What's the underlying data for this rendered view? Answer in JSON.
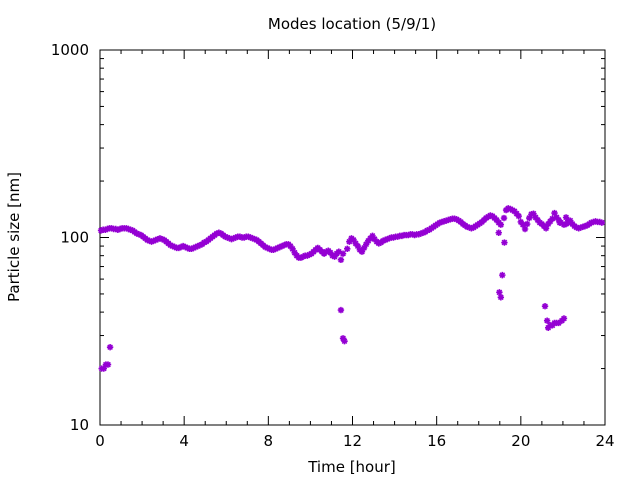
{
  "chart_data": {
    "type": "scatter",
    "title": "Modes location (5/9/1)",
    "xlabel": "Time [hour]",
    "ylabel": "Particle size [nm]",
    "xlim": [
      0,
      24
    ],
    "ylim": [
      10,
      1000
    ],
    "yscale": "log",
    "grid": false,
    "legend": "none",
    "marker_color": "#9400d3",
    "marker": "asterisk",
    "xticks": [
      0,
      4,
      8,
      12,
      16,
      20,
      24
    ],
    "xtick_labels": [
      "0",
      "4",
      "8",
      "12",
      "16",
      "20",
      "24"
    ],
    "yticks": [
      10,
      100,
      1000
    ],
    "ytick_labels": [
      "10",
      "100",
      "1000"
    ],
    "series": [
      {
        "points": [
          [
            0.05,
            109
          ],
          [
            0.15,
            110
          ],
          [
            0.25,
            110
          ],
          [
            0.35,
            111
          ],
          [
            0.45,
            112
          ],
          [
            0.55,
            112
          ],
          [
            0.65,
            111
          ],
          [
            0.75,
            111
          ],
          [
            0.85,
            110
          ],
          [
            0.95,
            111
          ],
          [
            1.05,
            112
          ],
          [
            1.15,
            112
          ],
          [
            1.25,
            112
          ],
          [
            1.35,
            111
          ],
          [
            1.45,
            110
          ],
          [
            1.55,
            109
          ],
          [
            1.65,
            107
          ],
          [
            1.75,
            105
          ],
          [
            1.85,
            104
          ],
          [
            1.95,
            103
          ],
          [
            2.05,
            101
          ],
          [
            2.15,
            99
          ],
          [
            2.25,
            97
          ],
          [
            2.35,
            96
          ],
          [
            2.45,
            95
          ],
          [
            2.55,
            96
          ],
          [
            2.65,
            97
          ],
          [
            2.75,
            98
          ],
          [
            2.85,
            99
          ],
          [
            2.95,
            98
          ],
          [
            3.05,
            97
          ],
          [
            3.15,
            95
          ],
          [
            3.25,
            93
          ],
          [
            3.35,
            91
          ],
          [
            3.45,
            90
          ],
          [
            3.55,
            89
          ],
          [
            3.65,
            88
          ],
          [
            3.75,
            88
          ],
          [
            3.85,
            89
          ],
          [
            3.95,
            90
          ],
          [
            4.05,
            89
          ],
          [
            4.15,
            88
          ],
          [
            4.25,
            87
          ],
          [
            4.35,
            87
          ],
          [
            4.45,
            88
          ],
          [
            4.55,
            89
          ],
          [
            4.65,
            90
          ],
          [
            4.75,
            91
          ],
          [
            4.85,
            92
          ],
          [
            4.95,
            94
          ],
          [
            5.05,
            95
          ],
          [
            5.15,
            97
          ],
          [
            5.25,
            99
          ],
          [
            5.35,
            101
          ],
          [
            5.45,
            103
          ],
          [
            5.55,
            105
          ],
          [
            5.65,
            106
          ],
          [
            5.75,
            105
          ],
          [
            5.85,
            103
          ],
          [
            5.95,
            101
          ],
          [
            6.05,
            100
          ],
          [
            6.15,
            99
          ],
          [
            6.25,
            98
          ],
          [
            6.35,
            99
          ],
          [
            6.45,
            100
          ],
          [
            6.55,
            101
          ],
          [
            6.65,
            101
          ],
          [
            6.75,
            100
          ],
          [
            6.85,
            100
          ],
          [
            6.95,
            101
          ],
          [
            7.05,
            101
          ],
          [
            7.15,
            100
          ],
          [
            7.25,
            99
          ],
          [
            7.35,
            98
          ],
          [
            7.45,
            97
          ],
          [
            7.55,
            95
          ],
          [
            7.65,
            93
          ],
          [
            7.75,
            91
          ],
          [
            7.85,
            89
          ],
          [
            7.95,
            88
          ],
          [
            8.05,
            87
          ],
          [
            8.15,
            86
          ],
          [
            8.25,
            86
          ],
          [
            8.35,
            87
          ],
          [
            8.45,
            88
          ],
          [
            8.55,
            89
          ],
          [
            8.65,
            90
          ],
          [
            8.75,
            91
          ],
          [
            8.85,
            92
          ],
          [
            8.95,
            92
          ],
          [
            9.05,
            90
          ],
          [
            9.15,
            87
          ],
          [
            9.25,
            83
          ],
          [
            9.35,
            80
          ],
          [
            9.45,
            78
          ],
          [
            9.55,
            78
          ],
          [
            9.65,
            79
          ],
          [
            9.75,
            80
          ],
          [
            9.85,
            80
          ],
          [
            9.95,
            81
          ],
          [
            10.05,
            82
          ],
          [
            10.15,
            84
          ],
          [
            10.25,
            86
          ],
          [
            10.35,
            88
          ],
          [
            10.45,
            86
          ],
          [
            10.55,
            84
          ],
          [
            10.65,
            82
          ],
          [
            10.75,
            84
          ],
          [
            10.85,
            85
          ],
          [
            10.95,
            83
          ],
          [
            11.05,
            80
          ],
          [
            11.15,
            79
          ],
          [
            11.25,
            82
          ],
          [
            11.35,
            84
          ],
          [
            11.45,
            76
          ],
          [
            11.55,
            82
          ],
          [
            11.75,
            87
          ],
          [
            11.85,
            95
          ],
          [
            11.95,
            99
          ],
          [
            12.05,
            97
          ],
          [
            12.15,
            93
          ],
          [
            12.25,
            90
          ],
          [
            12.35,
            86
          ],
          [
            12.45,
            84
          ],
          [
            12.55,
            88
          ],
          [
            12.65,
            92
          ],
          [
            12.75,
            96
          ],
          [
            12.85,
            99
          ],
          [
            12.95,
            102
          ],
          [
            13.05,
            98
          ],
          [
            13.15,
            95
          ],
          [
            13.25,
            93
          ],
          [
            13.35,
            94
          ],
          [
            13.45,
            96
          ],
          [
            13.55,
            97
          ],
          [
            13.65,
            98
          ],
          [
            13.75,
            99
          ],
          [
            13.85,
            100
          ],
          [
            13.95,
            100
          ],
          [
            14.05,
            101
          ],
          [
            14.15,
            101
          ],
          [
            14.25,
            102
          ],
          [
            14.35,
            102
          ],
          [
            14.45,
            103
          ],
          [
            14.55,
            103
          ],
          [
            14.65,
            103
          ],
          [
            14.75,
            104
          ],
          [
            14.85,
            104
          ],
          [
            14.95,
            103
          ],
          [
            15.05,
            104
          ],
          [
            15.15,
            104
          ],
          [
            15.25,
            105
          ],
          [
            15.35,
            106
          ],
          [
            15.45,
            107
          ],
          [
            15.55,
            109
          ],
          [
            15.65,
            110
          ],
          [
            15.75,
            112
          ],
          [
            15.85,
            114
          ],
          [
            15.95,
            116
          ],
          [
            16.05,
            118
          ],
          [
            16.15,
            120
          ],
          [
            16.25,
            121
          ],
          [
            16.35,
            122
          ],
          [
            16.45,
            123
          ],
          [
            16.55,
            124
          ],
          [
            16.65,
            125
          ],
          [
            16.75,
            126
          ],
          [
            16.85,
            126
          ],
          [
            16.95,
            125
          ],
          [
            17.05,
            123
          ],
          [
            17.15,
            121
          ],
          [
            17.25,
            118
          ],
          [
            17.35,
            116
          ],
          [
            17.45,
            114
          ],
          [
            17.55,
            113
          ],
          [
            17.65,
            112
          ],
          [
            17.75,
            113
          ],
          [
            17.85,
            115
          ],
          [
            17.95,
            117
          ],
          [
            18.05,
            119
          ],
          [
            18.15,
            121
          ],
          [
            18.25,
            124
          ],
          [
            18.35,
            127
          ],
          [
            18.45,
            129
          ],
          [
            18.55,
            131
          ],
          [
            18.65,
            130
          ],
          [
            18.75,
            127
          ],
          [
            18.85,
            124
          ],
          [
            18.95,
            120
          ],
          [
            19.05,
            117
          ],
          [
            19.2,
            127
          ],
          [
            19.3,
            140
          ],
          [
            19.4,
            143
          ],
          [
            19.5,
            142
          ],
          [
            19.6,
            140
          ],
          [
            19.7,
            138
          ],
          [
            19.8,
            134
          ],
          [
            19.9,
            130
          ],
          [
            20.0,
            121
          ],
          [
            20.1,
            117
          ],
          [
            20.2,
            111
          ],
          [
            20.3,
            118
          ],
          [
            20.4,
            127
          ],
          [
            20.5,
            133
          ],
          [
            20.6,
            134
          ],
          [
            20.7,
            128
          ],
          [
            20.8,
            124
          ],
          [
            20.9,
            120
          ],
          [
            21.0,
            118
          ],
          [
            21.1,
            115
          ],
          [
            21.2,
            112
          ],
          [
            21.3,
            118
          ],
          [
            21.4,
            122
          ],
          [
            21.5,
            126
          ],
          [
            21.6,
            135
          ],
          [
            21.7,
            128
          ],
          [
            21.8,
            124
          ],
          [
            21.9,
            120
          ],
          [
            22.05,
            117
          ],
          [
            22.15,
            118
          ],
          [
            22.25,
            120
          ],
          [
            22.35,
            123
          ],
          [
            22.45,
            118
          ],
          [
            22.55,
            115
          ],
          [
            22.65,
            113
          ],
          [
            22.75,
            112
          ],
          [
            22.85,
            113
          ],
          [
            22.95,
            114
          ],
          [
            23.05,
            115
          ],
          [
            23.15,
            116
          ],
          [
            23.25,
            118
          ],
          [
            23.35,
            120
          ],
          [
            23.45,
            121
          ],
          [
            23.55,
            122
          ],
          [
            23.65,
            121
          ],
          [
            23.75,
            121
          ],
          [
            23.85,
            120
          ],
          [
            0.08,
            20
          ],
          [
            0.18,
            20
          ],
          [
            0.28,
            21
          ],
          [
            0.38,
            21
          ],
          [
            0.48,
            26
          ],
          [
            11.45,
            41
          ],
          [
            11.55,
            29
          ],
          [
            11.62,
            28
          ],
          [
            18.95,
            106
          ],
          [
            18.98,
            51
          ],
          [
            19.05,
            48
          ],
          [
            19.12,
            63
          ],
          [
            19.22,
            94
          ],
          [
            21.15,
            43
          ],
          [
            21.25,
            36
          ],
          [
            21.3,
            33
          ],
          [
            21.4,
            34
          ],
          [
            21.5,
            34
          ],
          [
            21.6,
            35
          ],
          [
            21.7,
            35
          ],
          [
            21.8,
            35
          ],
          [
            21.95,
            36
          ],
          [
            22.05,
            37
          ],
          [
            21.85,
            120
          ],
          [
            22.15,
            128
          ],
          [
            22.25,
            123
          ]
        ]
      }
    ]
  }
}
